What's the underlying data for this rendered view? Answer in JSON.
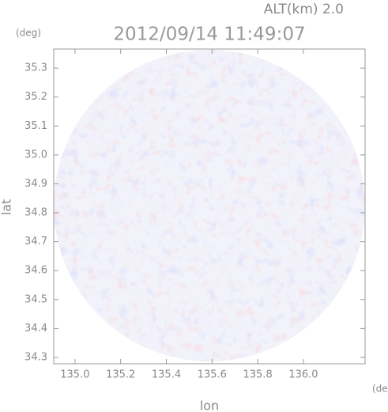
{
  "chart_data": {
    "type": "radar-image",
    "title": "2012/09/14 11:49:07",
    "altitude_label": "ALT(km) 2.0",
    "y_unit": "(deg)",
    "x_unit": "(deg)",
    "xlabel": "lon",
    "ylabel": "lat",
    "xlim": [
      134.907,
      136.27
    ],
    "ylim": [
      34.278,
      35.366
    ],
    "xticks": [
      {
        "value": 135,
        "label": "135.0"
      },
      135.2,
      135.4,
      135.6,
      135.8,
      {
        "value": 136,
        "label": "136.0"
      }
    ],
    "yticks": [
      34.3,
      34.4,
      34.5,
      34.6,
      34.7,
      34.8,
      34.9,
      {
        "value": 35,
        "label": "35.0"
      },
      35.1,
      35.2,
      35.3
    ]
  }
}
